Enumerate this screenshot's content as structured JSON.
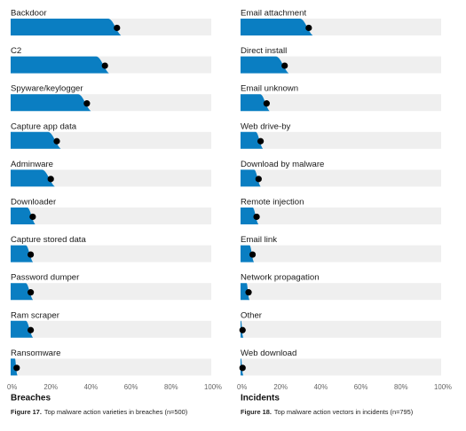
{
  "chart_data": [
    {
      "type": "bar",
      "title": "Breaches",
      "caption_label": "Figure 17.",
      "caption_text": "Top malware action varieties in breaches (n=500)",
      "categories": [
        "Backdoor",
        "C2",
        "Spyware/keylogger",
        "Capture app data",
        "Adminware",
        "Downloader",
        "Capture stored data",
        "Password dumper",
        "Ram scraper",
        "Ransomware"
      ],
      "values": [
        53,
        47,
        38,
        23,
        20,
        11,
        10,
        10,
        10,
        3
      ],
      "ticks": [
        "0%",
        "20%",
        "40%",
        "60%",
        "80%",
        "100%"
      ],
      "xlim": [
        0,
        100
      ],
      "colors": {
        "bar": "#0a7ec2",
        "track": "#efefef",
        "dot": "#000000"
      }
    },
    {
      "type": "bar",
      "title": "Incidents",
      "caption_label": "Figure 18.",
      "caption_text": "Top malware action vectors in incidents (n=795)",
      "categories": [
        "Email attachment",
        "Direct install",
        "Email unknown",
        "Web drive-by",
        "Download by malware",
        "Remote injection",
        "Email link",
        "Network propagation",
        "Other",
        "Web download"
      ],
      "values": [
        34,
        22,
        13,
        10,
        9,
        8,
        6,
        4,
        1,
        1
      ],
      "ticks": [
        "0%",
        "20%",
        "40%",
        "60%",
        "80%",
        "100%"
      ],
      "xlim": [
        0,
        100
      ],
      "colors": {
        "bar": "#0a7ec2",
        "track": "#efefef",
        "dot": "#000000"
      }
    }
  ]
}
